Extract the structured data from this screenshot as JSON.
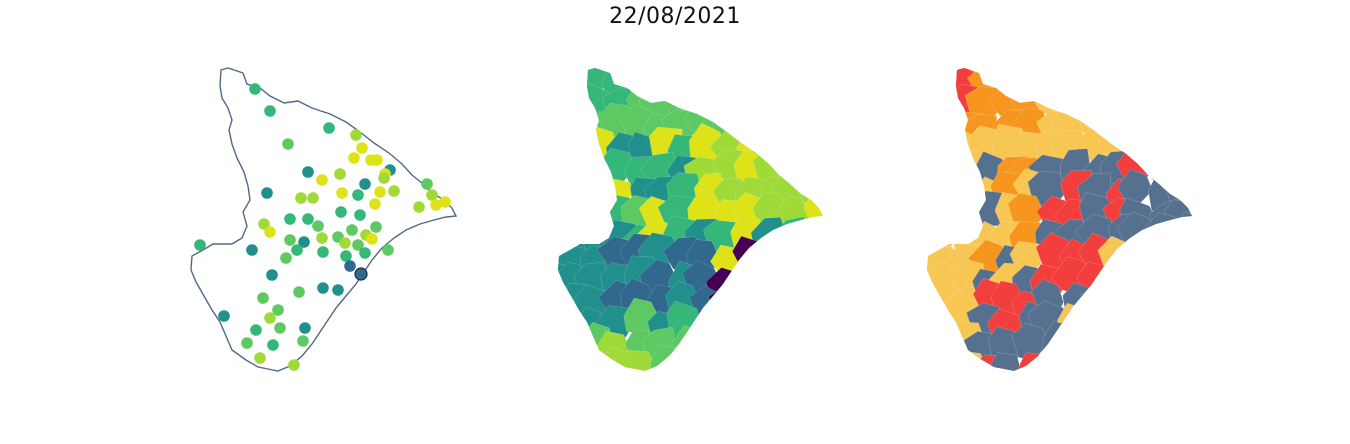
{
  "figure": {
    "title": "22/08/2021"
  },
  "colors": {
    "outline": "#51688a",
    "background": "#ffffff",
    "viridis": [
      "#440154",
      "#31688e",
      "#21908d",
      "#35b779",
      "#5ec962",
      "#a0da39",
      "#dde318"
    ],
    "risk": [
      "#56708f",
      "#f8c652",
      "#f6961f",
      "#f33e3e"
    ]
  },
  "panels": [
    {
      "name": "station-points-map",
      "type": "point-map"
    },
    {
      "name": "municipality-choropleth-viridis",
      "type": "choropleth"
    },
    {
      "name": "municipality-risk-choropleth",
      "type": "choropleth"
    }
  ],
  "legend": []
}
